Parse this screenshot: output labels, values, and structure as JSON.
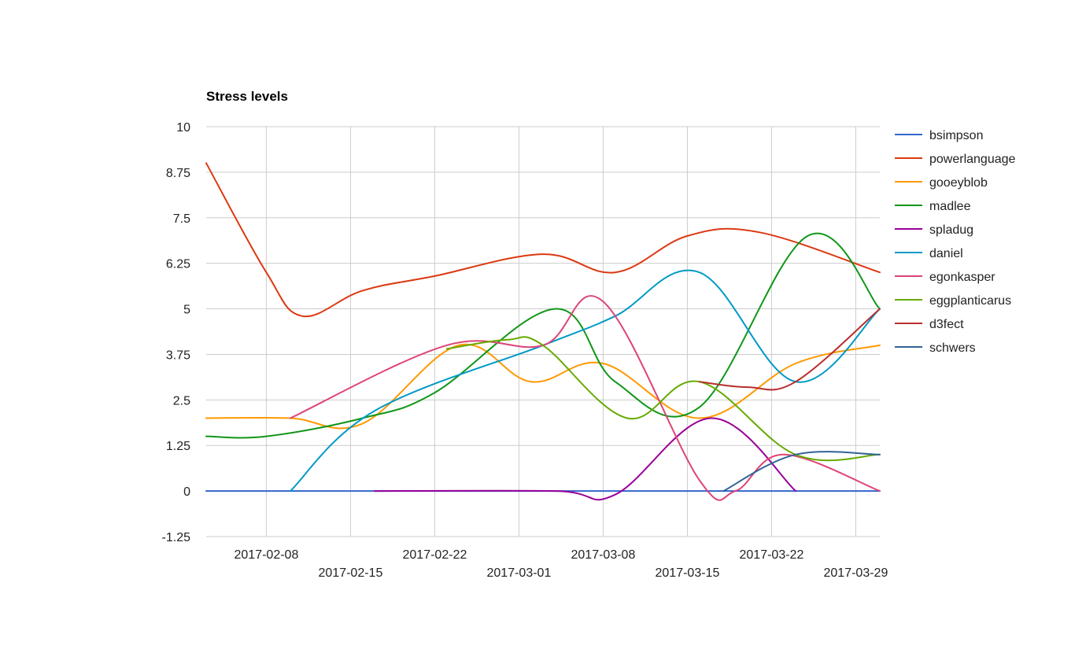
{
  "chart_data": {
    "type": "line",
    "title": "Stress levels",
    "xlabel": "",
    "ylabel": "",
    "x_axis_type": "date",
    "xlim": [
      "2017-02-03",
      "2017-03-31"
    ],
    "ylim": [
      -1.25,
      10
    ],
    "y_ticks": [
      10,
      8.75,
      7.5,
      6.25,
      5,
      3.75,
      2.5,
      1.25,
      0,
      -1.25
    ],
    "y_tick_labels": [
      "10",
      "8.75",
      "7.5",
      "6.25",
      "5",
      "3.75",
      "2.5",
      "1.25",
      "0",
      "-1.25"
    ],
    "x_ticks": [
      "2017-02-08",
      "2017-02-15",
      "2017-02-22",
      "2017-03-01",
      "2017-03-08",
      "2017-03-15",
      "2017-03-22",
      "2017-03-29"
    ],
    "grid": true,
    "curve": "smooth",
    "legend_position": "right",
    "series": [
      {
        "name": "bsimpson",
        "color": "#3366cc",
        "points": [
          [
            "2017-02-03",
            0
          ],
          [
            "2017-03-31",
            0
          ]
        ]
      },
      {
        "name": "powerlanguage",
        "color": "#dc3912",
        "points": [
          [
            "2017-02-03",
            9
          ],
          [
            "2017-02-08",
            6
          ],
          [
            "2017-02-11",
            4.8
          ],
          [
            "2017-02-16",
            5.5
          ],
          [
            "2017-02-22",
            5.9
          ],
          [
            "2017-03-03",
            6.5
          ],
          [
            "2017-03-09",
            6
          ],
          [
            "2017-03-15",
            7
          ],
          [
            "2017-03-21",
            7.1
          ],
          [
            "2017-03-31",
            6
          ]
        ]
      },
      {
        "name": "gooeyblob",
        "color": "#ff9900",
        "points": [
          [
            "2017-02-03",
            2
          ],
          [
            "2017-02-10",
            2
          ],
          [
            "2017-02-16",
            1.85
          ],
          [
            "2017-02-24",
            4
          ],
          [
            "2017-03-02",
            3
          ],
          [
            "2017-03-08",
            3.5
          ],
          [
            "2017-03-16",
            2
          ],
          [
            "2017-03-24",
            3.5
          ],
          [
            "2017-03-31",
            4
          ]
        ]
      },
      {
        "name": "madlee",
        "color": "#109618",
        "points": [
          [
            "2017-02-03",
            1.5
          ],
          [
            "2017-02-08",
            1.5
          ],
          [
            "2017-02-16",
            2
          ],
          [
            "2017-02-22",
            2.7
          ],
          [
            "2017-03-04",
            5
          ],
          [
            "2017-03-09",
            3
          ],
          [
            "2017-03-16",
            2.3
          ],
          [
            "2017-03-25",
            7
          ],
          [
            "2017-03-31",
            5
          ]
        ]
      },
      {
        "name": "spladug",
        "color": "#990099",
        "points": [
          [
            "2017-02-17",
            0
          ],
          [
            "2017-03-04",
            0
          ],
          [
            "2017-03-09",
            -0.1
          ],
          [
            "2017-03-17",
            2
          ],
          [
            "2017-03-24",
            0
          ]
        ]
      },
      {
        "name": "daniel",
        "color": "#0099c6",
        "points": [
          [
            "2017-02-10",
            0
          ],
          [
            "2017-02-17",
            2.2
          ],
          [
            "2017-03-03",
            4
          ],
          [
            "2017-03-09",
            4.8
          ],
          [
            "2017-03-16",
            6
          ],
          [
            "2017-03-24",
            3
          ],
          [
            "2017-03-31",
            5
          ]
        ]
      },
      {
        "name": "egonkasper",
        "color": "#dd4477",
        "points": [
          [
            "2017-02-10",
            2
          ],
          [
            "2017-02-23",
            4
          ],
          [
            "2017-03-03",
            4
          ],
          [
            "2017-03-08",
            5.2
          ],
          [
            "2017-03-16",
            0.3
          ],
          [
            "2017-03-19",
            0
          ],
          [
            "2017-03-23",
            1
          ],
          [
            "2017-03-31",
            0
          ]
        ]
      },
      {
        "name": "eggplanticarus",
        "color": "#66aa00",
        "points": [
          [
            "2017-02-23",
            3.9
          ],
          [
            "2017-02-28",
            4.15
          ],
          [
            "2017-03-03",
            4
          ],
          [
            "2017-03-10",
            2
          ],
          [
            "2017-03-16",
            3
          ],
          [
            "2017-03-24",
            1
          ],
          [
            "2017-03-31",
            1
          ]
        ]
      },
      {
        "name": "d3fect",
        "color": "#b82e2e",
        "points": [
          [
            "2017-03-16",
            3
          ],
          [
            "2017-03-20",
            2.85
          ],
          [
            "2017-03-24",
            3
          ],
          [
            "2017-03-31",
            5
          ]
        ]
      },
      {
        "name": "schwers",
        "color": "#316395",
        "points": [
          [
            "2017-03-18",
            0
          ],
          [
            "2017-03-24",
            1
          ],
          [
            "2017-03-31",
            1
          ]
        ]
      }
    ]
  }
}
